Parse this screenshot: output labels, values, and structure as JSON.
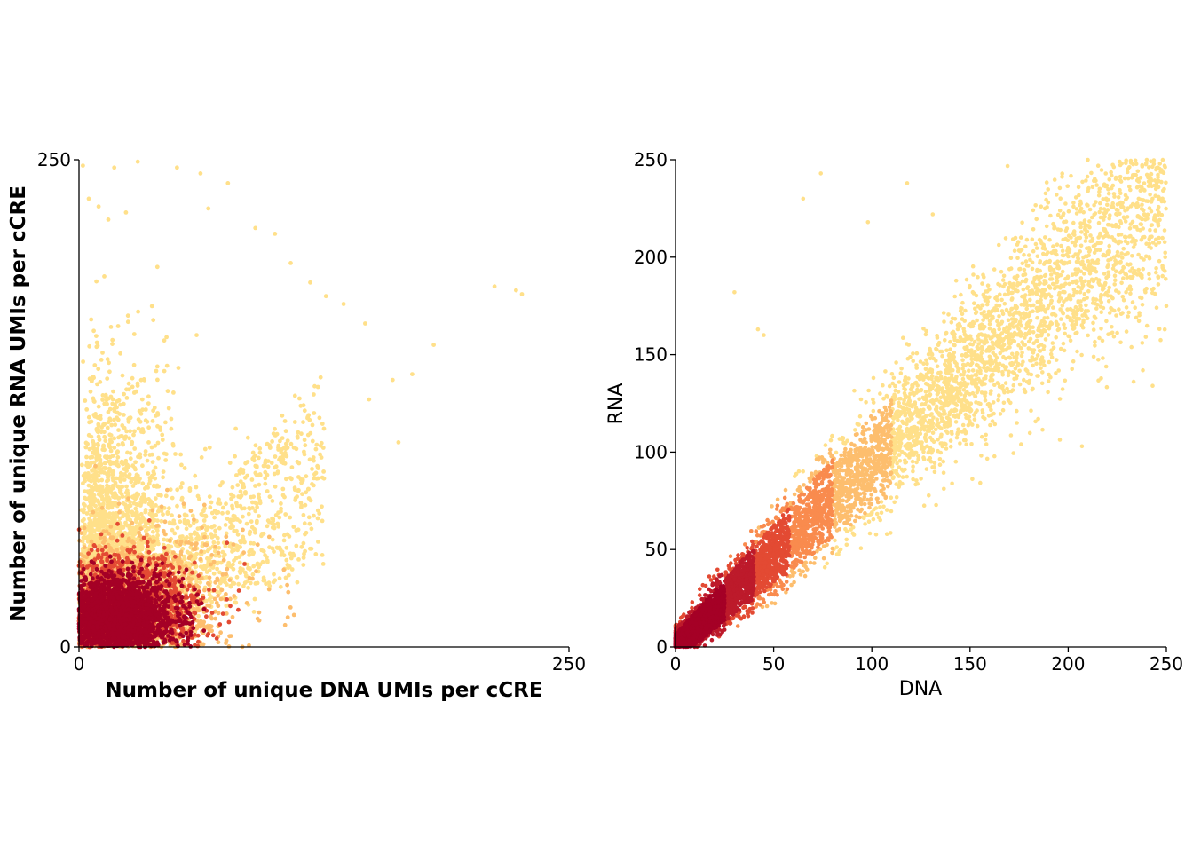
{
  "chart_data": [
    {
      "type": "scatter",
      "title": "",
      "xlabel": "Number of unique DNA UMIs per cCRE",
      "ylabel": "Number of unique RNA UMIs per cCRE",
      "xlim": [
        0,
        250
      ],
      "ylim": [
        0,
        250
      ],
      "xticks": [
        "0",
        "250"
      ],
      "yticks": [
        "0",
        "250"
      ],
      "grid": false,
      "color_scale": [
        "#ffe08a",
        "#fdbe6e",
        "#f98b4e",
        "#e34a33",
        "#bd1a2b",
        "#a50026"
      ],
      "density_core": {
        "x_center": 20,
        "y_center": 18,
        "x_sd": 16,
        "y_sd": 9
      },
      "points": [
        {
          "x": 2,
          "y": 247
        },
        {
          "x": 10,
          "y": 226
        },
        {
          "x": 18,
          "y": 246
        },
        {
          "x": 30,
          "y": 249
        },
        {
          "x": 50,
          "y": 246
        },
        {
          "x": 62,
          "y": 243
        },
        {
          "x": 66,
          "y": 225
        },
        {
          "x": 76,
          "y": 238
        },
        {
          "x": 90,
          "y": 215
        },
        {
          "x": 100,
          "y": 212
        },
        {
          "x": 108,
          "y": 197
        },
        {
          "x": 118,
          "y": 187
        },
        {
          "x": 126,
          "y": 180
        },
        {
          "x": 135,
          "y": 176
        },
        {
          "x": 146,
          "y": 166
        },
        {
          "x": 212,
          "y": 185
        },
        {
          "x": 223,
          "y": 183
        },
        {
          "x": 226,
          "y": 181
        },
        {
          "x": 181,
          "y": 155
        },
        {
          "x": 170,
          "y": 140
        },
        {
          "x": 160,
          "y": 137
        },
        {
          "x": 148,
          "y": 127
        },
        {
          "x": 125,
          "y": 112
        },
        {
          "x": 96,
          "y": 62
        },
        {
          "x": 163,
          "y": 105
        },
        {
          "x": 80,
          "y": 112
        },
        {
          "x": 60,
          "y": 160
        },
        {
          "x": 40,
          "y": 195
        },
        {
          "x": 25,
          "y": 170
        },
        {
          "x": 5,
          "y": 230
        }
      ]
    },
    {
      "type": "scatter",
      "title": "",
      "xlabel": "DNA",
      "ylabel": "RNA",
      "xlim": [
        0,
        250
      ],
      "ylim": [
        0,
        250
      ],
      "xticks": [
        "0",
        "50",
        "100",
        "150",
        "200",
        "250"
      ],
      "yticks": [
        "0",
        "50",
        "100",
        "150",
        "200",
        "250"
      ],
      "grid": false,
      "color_scale": [
        "#ffe08a",
        "#fdbe6e",
        "#f98b4e",
        "#e34a33",
        "#bd1a2b",
        "#a50026"
      ],
      "trend": {
        "slope": 0.95,
        "intercept": 0
      },
      "points": [
        {
          "x": 30,
          "y": 182
        },
        {
          "x": 42,
          "y": 163
        },
        {
          "x": 45,
          "y": 160
        },
        {
          "x": 65,
          "y": 230
        },
        {
          "x": 74,
          "y": 243
        },
        {
          "x": 98,
          "y": 218
        },
        {
          "x": 118,
          "y": 238
        },
        {
          "x": 131,
          "y": 222
        },
        {
          "x": 176,
          "y": 104
        },
        {
          "x": 207,
          "y": 103
        },
        {
          "x": 243,
          "y": 134
        },
        {
          "x": 210,
          "y": 250
        },
        {
          "x": 240,
          "y": 250
        },
        {
          "x": 250,
          "y": 175
        },
        {
          "x": 238,
          "y": 142
        }
      ]
    }
  ]
}
